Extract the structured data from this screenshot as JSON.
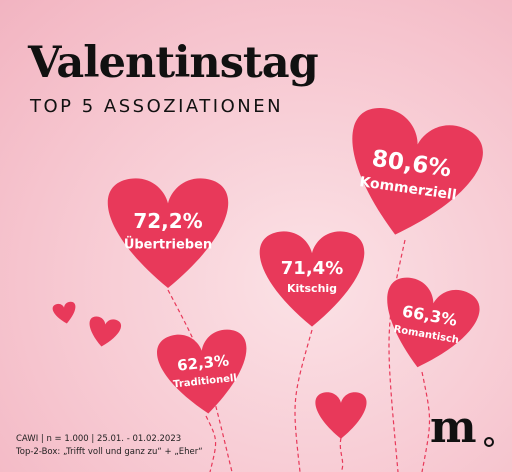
{
  "title": "Valentinstag",
  "subtitle": "TOP 5 ASSOZIATIONEN",
  "colors": {
    "heart": "#e8395a",
    "string": "#e8395a",
    "text": "#ffffff"
  },
  "chart_data": {
    "type": "bar",
    "categories": [
      "Kommerziell",
      "Übertrieben",
      "Kitschig",
      "Romantisch",
      "Traditionell"
    ],
    "values": [
      80.6,
      72.2,
      71.4,
      66.3,
      62.3
    ],
    "value_labels": [
      "80,6%",
      "72,2%",
      "71,4%",
      "66,3%",
      "62,3%"
    ],
    "unit": "%"
  },
  "footer": {
    "method": "CAWI | n = 1.000 | 25.01. - 01.02.2023",
    "note": "Top-2-Box: „Trifft voll und ganz zu“ + „Eher“"
  },
  "logo": {
    "letter": "m"
  }
}
